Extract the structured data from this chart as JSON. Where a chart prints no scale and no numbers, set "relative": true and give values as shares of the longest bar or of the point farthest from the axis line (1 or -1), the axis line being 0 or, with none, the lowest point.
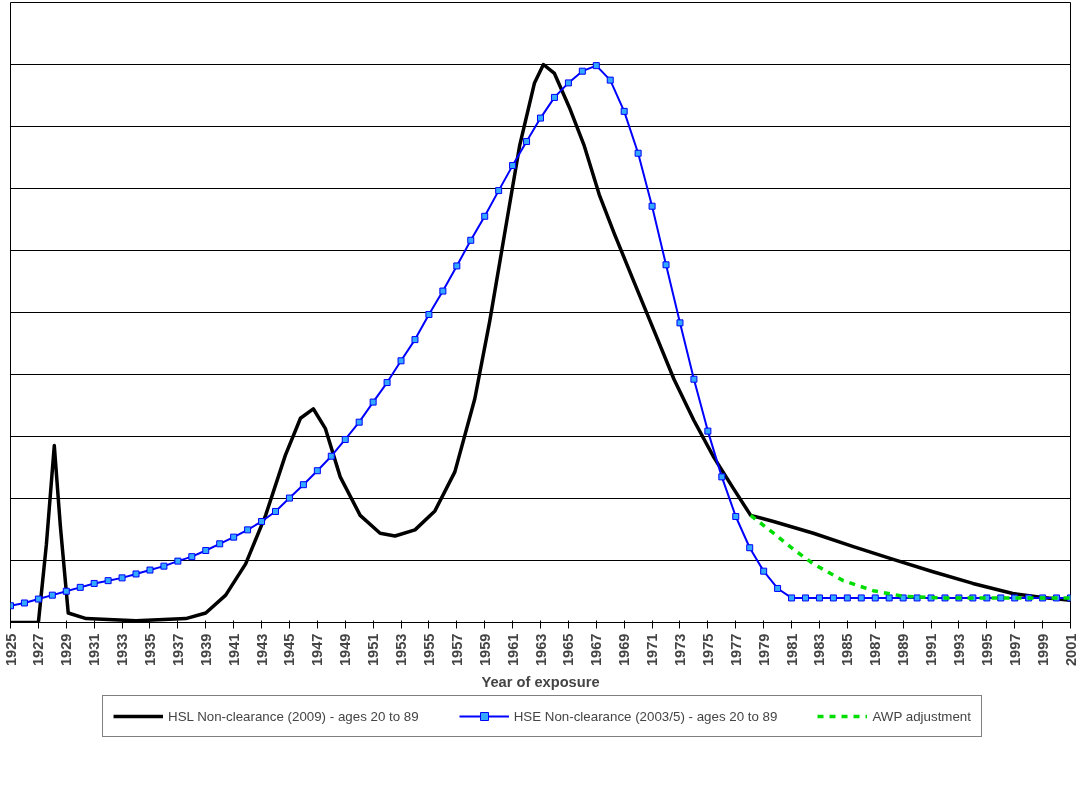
{
  "chart_data": {
    "type": "line",
    "relative": true,
    "xlabel": "Year of exposure",
    "grid": "y",
    "legend": "bottom",
    "xlim": [
      1925,
      2001
    ],
    "xticks": [
      1925,
      1927,
      1929,
      1931,
      1933,
      1935,
      1937,
      1939,
      1941,
      1943,
      1945,
      1947,
      1949,
      1951,
      1953,
      1955,
      1957,
      1959,
      1961,
      1963,
      1965,
      1967,
      1969,
      1971,
      1973,
      1975,
      1977,
      1979,
      1981,
      1983,
      1985,
      1987,
      1989,
      1991,
      1993,
      1995,
      1997,
      1999,
      2001
    ],
    "tick_labels": "x",
    "series": [
      {
        "name": "HSL Non-clearance (2009) - ages 20 to 89",
        "color": "#000000",
        "marker": "none",
        "line_style": "solid",
        "x": [
          1925,
          1927,
          1927.57,
          1928.14,
          1928.57,
          1929.14,
          1930.43,
          1934,
          1937.57,
          1939,
          1940.43,
          1941.86,
          1943.29,
          1944.71,
          1945.79,
          1946.71,
          1947.57,
          1948.64,
          1950.07,
          1951.5,
          1952.57,
          1954,
          1955.43,
          1956.86,
          1958.29,
          1959.36,
          1960.43,
          1961.5,
          1962.57,
          1963.21,
          1964,
          1965.07,
          1966.14,
          1967.21,
          1968.29,
          1969.71,
          1971.14,
          1972.57,
          1974,
          1975.43,
          1976.86,
          1978.07,
          1979.71,
          1982.57,
          1985.43,
          1988.29,
          1991.14,
          1994,
          1996.86,
          1999,
          2001
        ],
        "values": [
          0,
          0,
          0.139,
          0.317,
          0.174,
          0.017,
          0.007,
          0.003,
          0.007,
          0.017,
          0.049,
          0.105,
          0.192,
          0.3,
          0.366,
          0.383,
          0.348,
          0.261,
          0.192,
          0.16,
          0.155,
          0.166,
          0.2,
          0.27,
          0.401,
          0.54,
          0.697,
          0.854,
          0.967,
          1.0,
          0.984,
          0.923,
          0.854,
          0.767,
          0.697,
          0.61,
          0.523,
          0.436,
          0.362,
          0.296,
          0.239,
          0.192,
          0.181,
          0.16,
          0.136,
          0.113,
          0.091,
          0.07,
          0.052,
          0.045,
          0.04
        ]
      },
      {
        "name": "HSE Non-clearance (2003/5) - ages 20 to 89",
        "color": "#0000ff",
        "marker": "square",
        "line_style": "solid",
        "x": [
          1925,
          1926,
          1927,
          1928,
          1929,
          1930,
          1931,
          1932,
          1933,
          1934,
          1935,
          1936,
          1937,
          1938,
          1939,
          1940,
          1941,
          1942,
          1943,
          1944,
          1945,
          1946,
          1947,
          1948,
          1949,
          1950,
          1951,
          1952,
          1953,
          1954,
          1955,
          1956,
          1957,
          1958,
          1959,
          1960,
          1961,
          1962,
          1963,
          1964,
          1965,
          1966,
          1967,
          1968,
          1969,
          1970,
          1971,
          1972,
          1973,
          1974,
          1975,
          1976,
          1977,
          1978,
          1979,
          1980,
          1981,
          1982,
          1983,
          1984,
          1985,
          1986,
          1987,
          1988,
          1989,
          1990,
          1991,
          1992,
          1993,
          1994,
          1995,
          1996,
          1997,
          1998,
          1999,
          2000,
          2001
        ],
        "values": [
          0.03,
          0.035,
          0.042,
          0.049,
          0.056,
          0.063,
          0.07,
          0.075,
          0.08,
          0.087,
          0.094,
          0.101,
          0.11,
          0.118,
          0.129,
          0.141,
          0.153,
          0.166,
          0.181,
          0.199,
          0.223,
          0.247,
          0.272,
          0.298,
          0.328,
          0.359,
          0.395,
          0.43,
          0.469,
          0.507,
          0.552,
          0.594,
          0.639,
          0.685,
          0.728,
          0.774,
          0.819,
          0.862,
          0.904,
          0.941,
          0.967,
          0.988,
          0.998,
          0.972,
          0.916,
          0.841,
          0.746,
          0.641,
          0.537,
          0.436,
          0.343,
          0.261,
          0.19,
          0.134,
          0.092,
          0.061,
          0.044,
          0.044,
          0.044,
          0.044,
          0.044,
          0.044,
          0.044,
          0.044,
          0.044,
          0.044,
          0.044,
          0.044,
          0.044,
          0.044,
          0.044,
          0.044,
          0.044,
          0.044,
          0.044,
          0.044,
          0.044
        ]
      },
      {
        "name": "AWP adjustment",
        "color": "#00dd00",
        "marker": "none",
        "line_style": "dashed",
        "x": [
          1978.07,
          1979.71,
          1981.14,
          1982.57,
          1984.71,
          1986.86,
          1989,
          1991.86,
          2001
        ],
        "values": [
          0.192,
          0.16,
          0.131,
          0.105,
          0.075,
          0.057,
          0.047,
          0.044,
          0.044
        ]
      }
    ]
  }
}
